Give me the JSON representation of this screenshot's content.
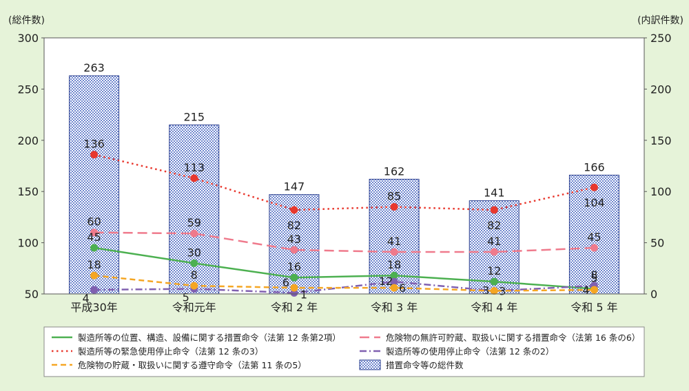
{
  "chart_data": {
    "type": "bar+line",
    "categories": [
      "平成30年",
      "令和元年",
      "令和 2 年",
      "令和 3 年",
      "令和 4 年",
      "令和 5 年"
    ],
    "y_left": {
      "label": "(総件数)",
      "ylim": [
        50,
        300
      ],
      "ticks": [
        50,
        100,
        150,
        200,
        250,
        300
      ]
    },
    "y_right": {
      "label": "(内訳件数)",
      "ylim": [
        0,
        250
      ],
      "ticks": [
        0,
        50,
        100,
        150,
        200,
        250
      ]
    },
    "bar_series": {
      "name": "措置命令等の総件数",
      "axis": "left",
      "color": "#3355bb",
      "values": [
        263,
        215,
        147,
        162,
        141,
        166
      ]
    },
    "line_series": [
      {
        "name": "製造所等の位置、構造、設備に関する措置命令（法第 12 条第2項）",
        "axis": "right",
        "color": "#4cb050",
        "dash": "solid",
        "values": [
          45,
          30,
          16,
          18,
          12,
          5
        ]
      },
      {
        "name": "危険物の無許可貯蔵、取扱いに関する措置命令（法第 16 条の6）",
        "axis": "right",
        "color": "#ef7a8c",
        "dash": "longdash",
        "values": [
          60,
          59,
          43,
          41,
          41,
          45
        ]
      },
      {
        "name": "製造所等の緊急使用停止命令（法第 12 条の3）",
        "axis": "right",
        "color": "#e8382e",
        "dash": "dotted",
        "values": [
          136,
          113,
          82,
          85,
          82,
          104
        ]
      },
      {
        "name": "製造所等の使用停止命令（法第 12 条の2）",
        "axis": "right",
        "color": "#8060b0",
        "dash": "dashdot",
        "values": [
          4,
          5,
          1,
          12,
          3,
          8
        ]
      },
      {
        "name": "危険物の貯蔵・取扱いに関する遵守命令（法第 11 条の5）",
        "axis": "right",
        "color": "#f5a623",
        "dash": "dashed",
        "values": [
          18,
          8,
          6,
          6,
          3,
          4
        ]
      }
    ],
    "legend_position": "bottom",
    "grid": false
  }
}
